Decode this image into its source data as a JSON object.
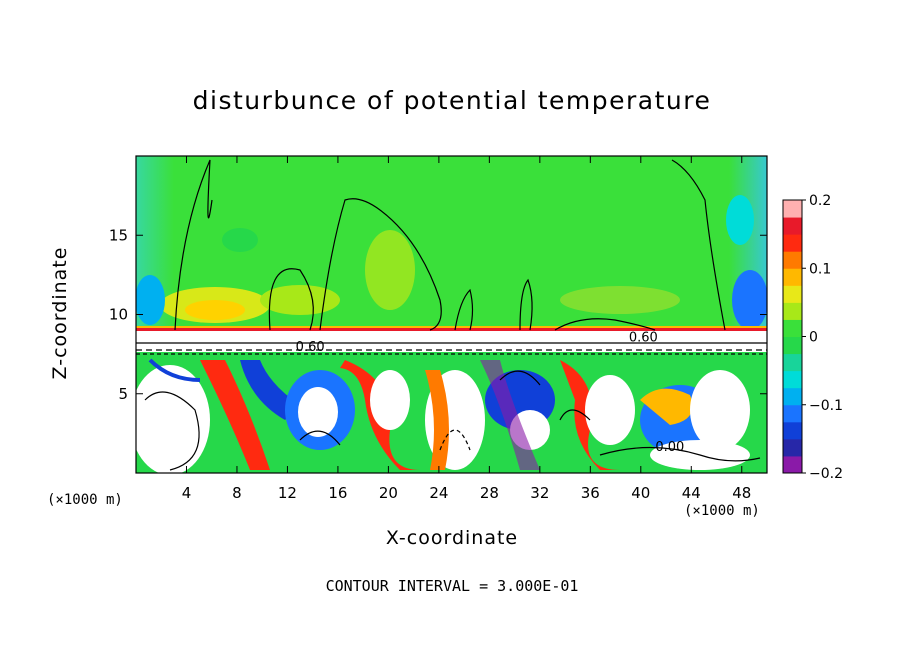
{
  "chart_data": {
    "type": "heatmap",
    "title": "disturbunce of potential temperature",
    "xlabel": "X-coordinate",
    "ylabel": "Z-coordinate",
    "x_unit": "(×1000 m)",
    "y_unit": "(×1000 m)",
    "xlim": [
      0,
      50
    ],
    "ylim": [
      0,
      20
    ],
    "x_ticks": [
      4,
      8,
      12,
      16,
      20,
      24,
      28,
      32,
      36,
      40,
      44,
      48
    ],
    "y_ticks": [
      5,
      10,
      15
    ],
    "colorbar": {
      "min": -0.2,
      "max": 0.2,
      "tick_values": [
        0.2,
        0.1,
        0,
        -0.1,
        -0.2
      ],
      "tick_labels": [
        "0.2",
        "0.1",
        "0",
        "−0.1",
        "−0.2"
      ],
      "colors": [
        "#8a1aa8",
        "#2727a8",
        "#1040d8",
        "#1a74ff",
        "#00b0f0",
        "#00dcd8",
        "#18d49a",
        "#26d84a",
        "#3ae03a",
        "#a8e818",
        "#e8e818",
        "#ffb800",
        "#ff7a00",
        "#ff2a10",
        "#e81a2a",
        "#ffb0b0"
      ]
    },
    "contour_labels": [
      {
        "text": "0.60",
        "x": 40.2,
        "z": 8.6
      },
      {
        "text": "0.60",
        "x": 13.8,
        "z": 8.0
      },
      {
        "text": "0.00",
        "x": 42.3,
        "z": 1.7
      }
    ],
    "footer": "CONTOUR INTERVAL = 3.000E-01"
  }
}
